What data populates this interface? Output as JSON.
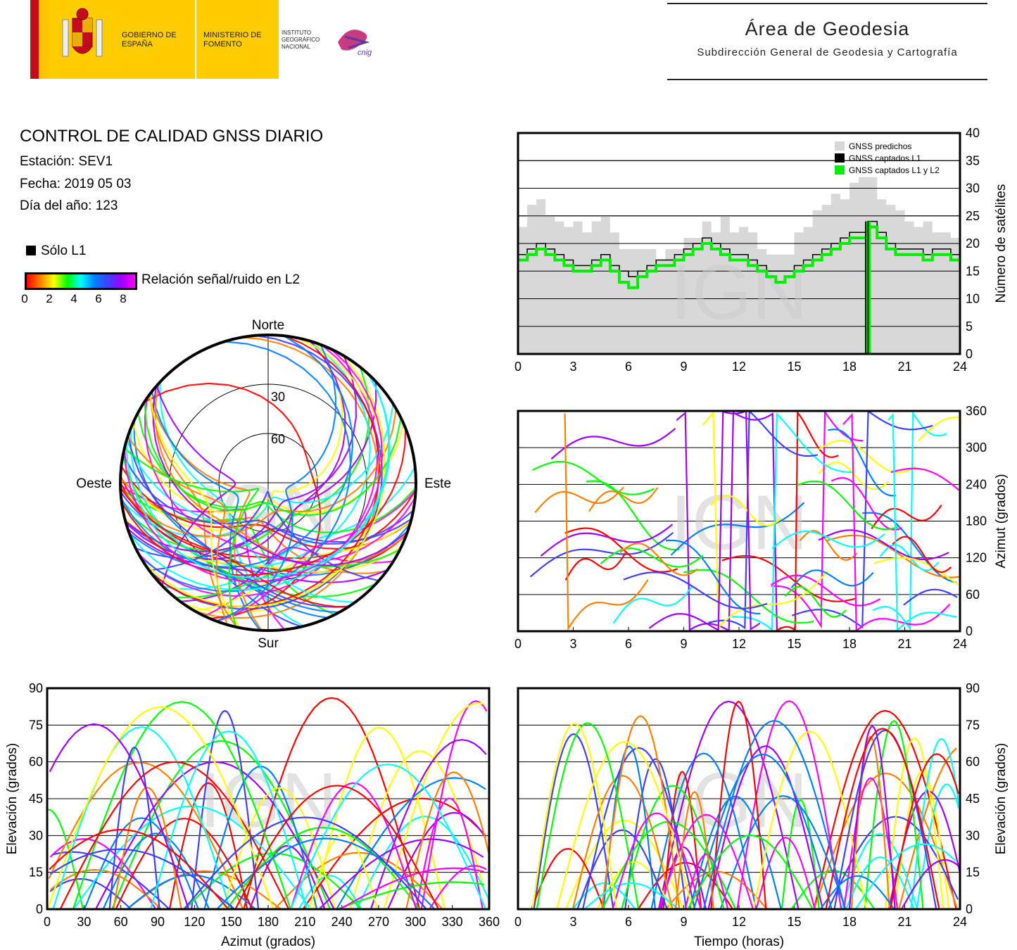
{
  "header": {
    "logo_gobierno": "GOBIERNO DE ESPAÑA",
    "logo_ministerio": "MINISTERIO DE FOMENTO",
    "logo_ign": "INSTITUTO GEOGRÁFICO NACIONAL",
    "logo_cnig": "cnig",
    "area_title": "Área de Geodesia",
    "area_subtitle": "Subdirección General de Geodesia y Cartografía"
  },
  "info": {
    "title": "CONTROL DE CALIDAD GNSS DIARIO",
    "station": "Estación: SEV1",
    "date": "Fecha: 2019 05 03",
    "doy": "Día del año: 123",
    "legend_l1": "Sólo L1",
    "legend_snr": "Relación señal/ruido en L2",
    "colorbar_ticks": [
      "0",
      "2",
      "4",
      "6",
      "8"
    ],
    "colors": [
      "#ff0000",
      "#ff8000",
      "#ffff00",
      "#00ff00",
      "#00ffff",
      "#0080ff",
      "#4040ff",
      "#a000ff",
      "#ff00ff"
    ]
  },
  "watermark": "IGN",
  "chart_data": [
    {
      "id": "satellite-count",
      "type": "area",
      "xlabel": "",
      "ylabel": "Número de satélites",
      "xlim": [
        0,
        24
      ],
      "ylim": [
        0,
        40
      ],
      "xticks": [
        "0",
        "3",
        "6",
        "9",
        "12",
        "15",
        "18",
        "21",
        "24"
      ],
      "yticks": [
        "0",
        "5",
        "10",
        "15",
        "20",
        "25",
        "30",
        "35",
        "40"
      ],
      "legend": [
        "GNSS predichos",
        "GNSS captados L1",
        "GNSS captados L1 y L2"
      ],
      "legend_position": "top-right",
      "series": [
        {
          "name": "GNSS predichos",
          "color": "#d8d8d8",
          "x": [
            0,
            0.5,
            1,
            1.5,
            2,
            2.5,
            3,
            3.5,
            4,
            4.5,
            5,
            5.5,
            6,
            6.5,
            7,
            7.5,
            8,
            8.5,
            9,
            9.5,
            10,
            10.5,
            11,
            11.5,
            12,
            12.5,
            13,
            13.5,
            14,
            14.5,
            15,
            15.5,
            16,
            16.5,
            17,
            17.5,
            18,
            18.5,
            19,
            19.5,
            20,
            20.5,
            21,
            21.5,
            22,
            22.5,
            23,
            23.5,
            24
          ],
          "values": [
            24,
            26,
            27,
            26,
            25,
            24,
            23,
            22,
            23,
            24,
            22,
            20,
            19,
            18,
            18,
            18,
            19,
            20,
            21,
            22,
            23,
            23,
            24,
            23,
            22,
            21,
            19,
            18,
            18,
            19,
            21,
            23,
            25,
            26,
            28,
            29,
            30,
            31,
            32,
            29,
            27,
            26,
            25,
            24,
            23,
            22,
            22,
            21,
            21
          ]
        },
        {
          "name": "GNSS captados L1",
          "color": "#000000",
          "x": [
            0,
            0.5,
            1,
            1.5,
            2,
            2.5,
            3,
            3.5,
            4,
            4.5,
            5,
            5.5,
            6,
            6.5,
            7,
            7.5,
            8,
            8.5,
            9,
            9.5,
            10,
            10.5,
            11,
            11.5,
            12,
            12.5,
            13,
            13.5,
            14,
            14.5,
            15,
            15.5,
            16,
            16.5,
            17,
            17.5,
            18,
            18.5,
            19,
            19.5,
            20,
            20.5,
            21,
            21.5,
            22,
            22.5,
            23,
            23.5,
            24
          ],
          "values": [
            18,
            19,
            20,
            19,
            18,
            17,
            16,
            16,
            17,
            18,
            16,
            15,
            14,
            15,
            16,
            17,
            17,
            18,
            19,
            20,
            21,
            20,
            19,
            18,
            18,
            17,
            16,
            15,
            15,
            15,
            16,
            17,
            18,
            19,
            20,
            21,
            22,
            22,
            24,
            22,
            20,
            19,
            19,
            19,
            18,
            19,
            19,
            18,
            16
          ]
        },
        {
          "name": "GNSS captados L1 y L2",
          "color": "#00ee00",
          "x": [
            0,
            0.5,
            1,
            1.5,
            2,
            2.5,
            3,
            3.5,
            4,
            4.5,
            5,
            5.5,
            6,
            6.5,
            7,
            7.5,
            8,
            8.5,
            9,
            9.5,
            10,
            10.5,
            11,
            11.5,
            12,
            12.5,
            13,
            13.5,
            14,
            14.5,
            15,
            15.5,
            16,
            16.5,
            17,
            17.5,
            18,
            18.5,
            19,
            19.5,
            20,
            20.5,
            21,
            21.5,
            22,
            22.5,
            23,
            23.5,
            24
          ],
          "values": [
            17,
            18,
            19,
            18,
            17,
            16,
            15,
            15,
            16,
            17,
            15,
            13,
            12,
            14,
            15,
            16,
            16,
            17,
            18,
            19,
            20,
            19,
            18,
            17,
            17,
            16,
            15,
            14,
            13,
            14,
            15,
            16,
            17,
            18,
            19,
            20,
            21,
            21,
            23,
            21,
            19,
            18,
            18,
            18,
            17,
            18,
            18,
            17,
            15
          ]
        }
      ],
      "gap_hours": [
        18.9,
        19.1
      ]
    },
    {
      "id": "skyplot",
      "type": "scatter",
      "title": "",
      "direction_labels": {
        "north": "Norte",
        "south": "Sur",
        "east": "Este",
        "west": "Oeste"
      },
      "elevation_rings": [
        "30",
        "60"
      ],
      "note": "polar plot of satellite tracks (azimuth, elevation) colored by L2 SNR"
    },
    {
      "id": "azimuth-vs-time",
      "type": "scatter",
      "xlabel": "",
      "ylabel": "Azimut (grados)",
      "xlim": [
        0,
        24
      ],
      "ylim": [
        0,
        360
      ],
      "xticks": [
        "0",
        "3",
        "6",
        "9",
        "12",
        "15",
        "18",
        "21",
        "24"
      ],
      "yticks": [
        "0",
        "60",
        "120",
        "180",
        "240",
        "300",
        "360"
      ]
    },
    {
      "id": "elevation-vs-azimuth",
      "type": "scatter",
      "xlabel": "Azimut (grados)",
      "ylabel": "Elevación (grados)",
      "xlim": [
        0,
        360
      ],
      "ylim": [
        0,
        90
      ],
      "xticks": [
        "0",
        "30",
        "60",
        "90",
        "120",
        "150",
        "180",
        "210",
        "240",
        "270",
        "300",
        "330",
        "360"
      ],
      "yticks": [
        "0",
        "15",
        "30",
        "45",
        "60",
        "75",
        "90"
      ]
    },
    {
      "id": "elevation-vs-time",
      "type": "scatter",
      "xlabel": "Tiempo (horas)",
      "ylabel": "Elevación (grados)",
      "xlim": [
        0,
        24
      ],
      "ylim": [
        0,
        90
      ],
      "xticks": [
        "0",
        "3",
        "6",
        "9",
        "12",
        "15",
        "18",
        "21",
        "24"
      ],
      "yticks": [
        "0",
        "15",
        "30",
        "45",
        "60",
        "75",
        "90"
      ]
    }
  ]
}
